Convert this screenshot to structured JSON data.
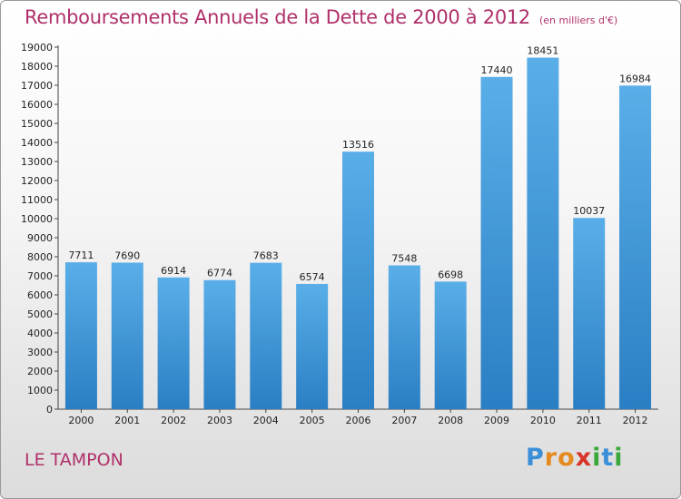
{
  "chart_data": {
    "type": "bar",
    "title": "Remboursements Annuels de la Dette de 2000 à 2012",
    "unit_note": "(en milliers d'€)",
    "categories": [
      "2000",
      "2001",
      "2002",
      "2003",
      "2004",
      "2005",
      "2006",
      "2007",
      "2008",
      "2009",
      "2010",
      "2011",
      "2012"
    ],
    "values": [
      7711,
      7690,
      6914,
      6774,
      7683,
      6574,
      13516,
      7548,
      6698,
      17440,
      18451,
      10037,
      16984
    ],
    "ylim": [
      0,
      19000
    ],
    "yticks": [
      0,
      1000,
      2000,
      3000,
      4000,
      5000,
      6000,
      7000,
      8000,
      9000,
      10000,
      11000,
      12000,
      13000,
      14000,
      15000,
      16000,
      17000,
      18000,
      19000
    ],
    "xlabel": "",
    "ylabel": "",
    "grid": false,
    "bar_color_top": "#5aaee8",
    "bar_color_bottom": "#2a7fc4"
  },
  "footer": {
    "commune": "LE TAMPON",
    "logo": {
      "letters": [
        "P",
        "r",
        "o",
        "x",
        "i",
        "t",
        "i"
      ],
      "colors": [
        "#3a8fd8",
        "#e58a1e",
        "#e58a1e",
        "#d8342a",
        "#3aa83a",
        "#3a8fd8",
        "#3aa83a"
      ]
    }
  }
}
